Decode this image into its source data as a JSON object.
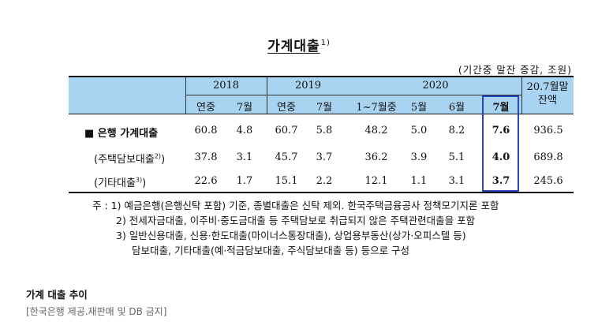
{
  "title": "가계대출",
  "title_sup": "1)",
  "unit": "(기간중 말잔 증감, 조원)",
  "header": {
    "y2018": "2018",
    "y2019": "2019",
    "y2020": "2020",
    "last": "20.7월말\n잔액",
    "sub": [
      "연중",
      "7월",
      "연중",
      "7월",
      "1~7월중",
      "5월",
      "6월",
      "7월"
    ]
  },
  "rows": [
    {
      "label": "■ 은행 가계대출",
      "values": [
        "60.8",
        "4.8",
        "60.7",
        "5.8",
        "48.2",
        "5.0",
        "8.2",
        "7.6",
        "936.5"
      ]
    },
    {
      "label": "(주택담보대출",
      "sup": "2)",
      "close": ")",
      "values": [
        "37.8",
        "3.1",
        "45.7",
        "3.7",
        "36.2",
        "3.9",
        "5.1",
        "4.0",
        "689.8"
      ]
    },
    {
      "label": "(기타대출",
      "sup": "3)",
      "close": ")",
      "values": [
        "22.6",
        "1.7",
        "15.1",
        "2.2",
        "12.1",
        "1.1",
        "3.1",
        "3.7",
        "245.6"
      ]
    }
  ],
  "notes": [
    "주 : 1) 예금은행(은행신탁 포함) 기준, 종별대출은 신탁 제외. 한국주택금융공사 정책모기지론 포함",
    "2) 전세자금대출, 이주비·중도금대출 등 주택담보로 취급되지 않은 주택관련대출을 포함",
    "3) 일반신용대출, 신용·한도대출(마이너스통장대출), 상업용부동산(상가·오피스텔 등)",
    "담보대출, 기타대출(예·적금담보대출, 주식담보대출 등) 등으로 구성"
  ],
  "bottom_title": "가계 대출 추이",
  "credit": "[한국은행 제공.재판매 및 DB 금지]"
}
